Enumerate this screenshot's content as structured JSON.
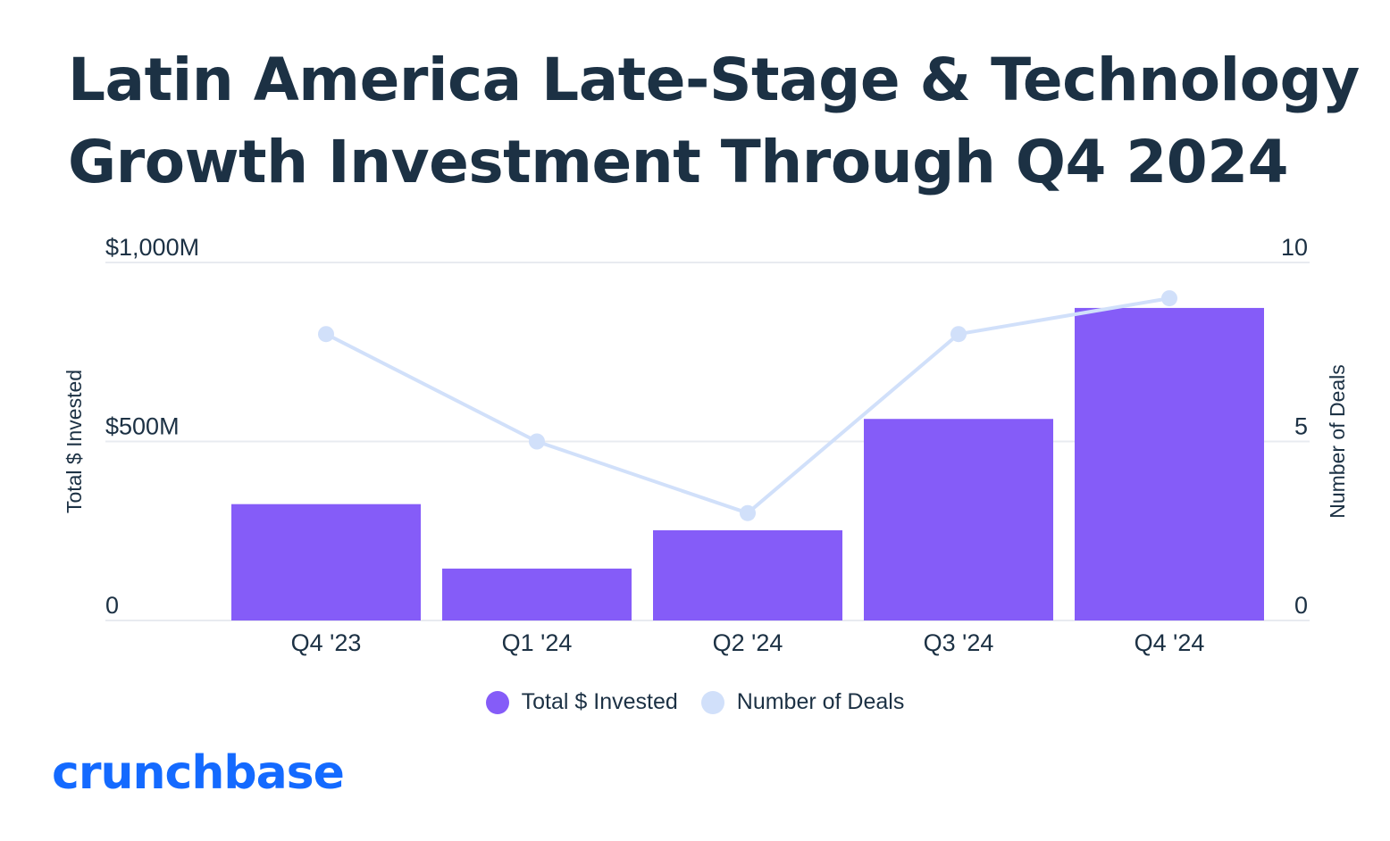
{
  "title_lines": [
    "Latin America Late-Stage & Technology",
    "Growth Investment Through Q4 2024"
  ],
  "brand": "crunchbase",
  "colors": {
    "bar": "#855cf8",
    "line": "#d1e0fa",
    "text": "#1c3144",
    "grid": "#e8ebf0",
    "brand": "#146aff"
  },
  "legend": [
    {
      "label": "Total $ Invested",
      "color": "#855cf8"
    },
    {
      "label": "Number of Deals",
      "color": "#d1e0fa"
    }
  ],
  "chart_data": {
    "type": "bar",
    "categories": [
      "Q4 '23",
      "Q1 '24",
      "Q2 '24",
      "Q3 '24",
      "Q4 '24"
    ],
    "series": [
      {
        "name": "Total $ Invested",
        "type": "bar",
        "axis": "left",
        "values": [
          325,
          145,
          252,
          563,
          873
        ]
      },
      {
        "name": "Number of Deals",
        "type": "line",
        "axis": "right",
        "values": [
          8,
          5,
          3,
          8,
          9
        ]
      }
    ],
    "ylabel": "Total $ Invested",
    "y2label": "Number of Deals",
    "ylim": [
      0,
      1000
    ],
    "y2lim": [
      0,
      10
    ],
    "yticks": [
      "0",
      "$500M",
      "$1,000M"
    ],
    "y2ticks": [
      "0",
      "5",
      "10"
    ],
    "grid": true,
    "legend_position": "bottom"
  }
}
